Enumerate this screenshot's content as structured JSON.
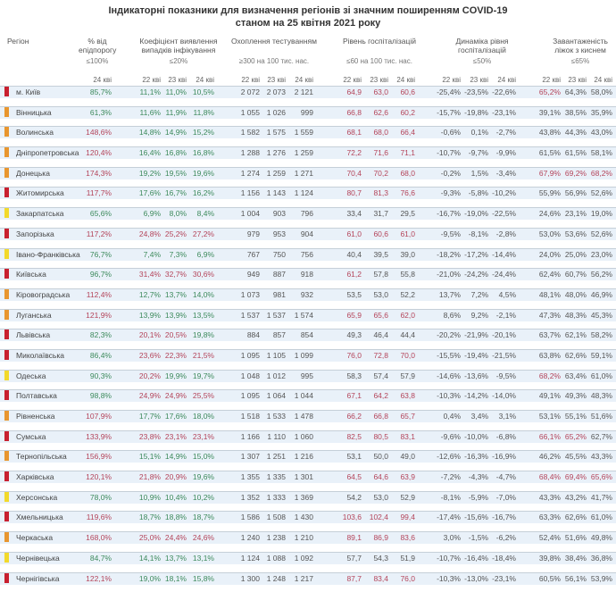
{
  "title": {
    "line1": "Індикаторні показники для визначення регіонів зі значним поширенням COVID-19",
    "line2": "станом на 25 квітня 2021 року"
  },
  "columns": {
    "region": "Регіон",
    "epi": {
      "label": "% від епідпорогу",
      "threshold": "≤100%",
      "dates": [
        "24 кві"
      ]
    },
    "coef": {
      "label": "Коефіцієнт виявлення випадків інфікування",
      "threshold": "≤20%",
      "dates": [
        "22 кві",
        "23 кві",
        "24 кві"
      ]
    },
    "test": {
      "label": "Охоплення тестуванням",
      "threshold": "≥300 на 100 тис. нас.",
      "dates": [
        "22 кві",
        "23 кві",
        "24 кві"
      ]
    },
    "hosp": {
      "label": "Рівень госпіталізацій",
      "threshold": "≤60 на 100 тис. нас.",
      "dates": [
        "22 кві",
        "23 кві",
        "24 кві"
      ]
    },
    "dyn": {
      "label": "Динаміка рівня госпіталізацій",
      "threshold": "≤50%",
      "dates": [
        "22 кві",
        "23 кві",
        "24 кві"
      ]
    },
    "oxy": {
      "label": "Завантаженість ліжок з киснем",
      "threshold": "≤65%",
      "dates": [
        "22 кві",
        "23 кві",
        "24 кві"
      ]
    }
  },
  "colors": {
    "red": "#c8202f",
    "orange": "#e8962f",
    "yellow": "#f2d92b",
    "over": "#b4445a",
    "ok": "#3d8a5c"
  },
  "regions": [
    {
      "name": "м. Київ",
      "level": "red",
      "epi": "85,7%",
      "coef": [
        "11,1%",
        "11,0%",
        "10,5%"
      ],
      "test": [
        "2 072",
        "2 073",
        "2 121"
      ],
      "hosp": [
        "64,9",
        "63,0",
        "60,6"
      ],
      "dyn": [
        "-25,4%",
        "-23,5%",
        "-22,6%"
      ],
      "oxy": [
        "65,2%",
        "64,3%",
        "58,0%"
      ]
    },
    {
      "name": "Вінницька",
      "level": "orange",
      "epi": "61,3%",
      "coef": [
        "11,6%",
        "11,9%",
        "11,8%"
      ],
      "test": [
        "1 055",
        "1 026",
        "999"
      ],
      "hosp": [
        "66,8",
        "62,6",
        "60,2"
      ],
      "dyn": [
        "-15,7%",
        "-19,8%",
        "-23,1%"
      ],
      "oxy": [
        "39,1%",
        "38,5%",
        "35,9%"
      ]
    },
    {
      "name": "Волинська",
      "level": "orange",
      "epi": "148,6%",
      "coef": [
        "14,8%",
        "14,9%",
        "15,2%"
      ],
      "test": [
        "1 582",
        "1 575",
        "1 559"
      ],
      "hosp": [
        "68,1",
        "68,0",
        "66,4"
      ],
      "dyn": [
        "-0,6%",
        "0,1%",
        "-2,7%"
      ],
      "oxy": [
        "43,8%",
        "44,3%",
        "43,0%"
      ]
    },
    {
      "name": "Дніпропетровська",
      "level": "orange",
      "epi": "120,4%",
      "coef": [
        "16,4%",
        "16,8%",
        "16,8%"
      ],
      "test": [
        "1 288",
        "1 276",
        "1 259"
      ],
      "hosp": [
        "72,2",
        "71,6",
        "71,1"
      ],
      "dyn": [
        "-10,7%",
        "-9,7%",
        "-9,9%"
      ],
      "oxy": [
        "61,5%",
        "61,5%",
        "58,1%"
      ]
    },
    {
      "name": "Донецька",
      "level": "orange",
      "epi": "174,3%",
      "coef": [
        "19,2%",
        "19,5%",
        "19,6%"
      ],
      "test": [
        "1 274",
        "1 259",
        "1 271"
      ],
      "hosp": [
        "70,4",
        "70,2",
        "68,0"
      ],
      "dyn": [
        "-0,2%",
        "1,5%",
        "-3,4%"
      ],
      "oxy": [
        "67,9%",
        "69,2%",
        "68,2%"
      ]
    },
    {
      "name": "Житомирська",
      "level": "red",
      "epi": "117,7%",
      "coef": [
        "17,6%",
        "16,7%",
        "16,2%"
      ],
      "test": [
        "1 156",
        "1 143",
        "1 124"
      ],
      "hosp": [
        "80,7",
        "81,3",
        "76,6"
      ],
      "dyn": [
        "-9,3%",
        "-5,8%",
        "-10,2%"
      ],
      "oxy": [
        "55,9%",
        "56,9%",
        "52,6%"
      ]
    },
    {
      "name": "Закарпатська",
      "level": "yellow",
      "epi": "65,6%",
      "coef": [
        "6,9%",
        "8,0%",
        "8,4%"
      ],
      "test": [
        "1 004",
        "903",
        "796"
      ],
      "hosp": [
        "33,4",
        "31,7",
        "29,5"
      ],
      "dyn": [
        "-16,7%",
        "-19,0%",
        "-22,5%"
      ],
      "oxy": [
        "24,6%",
        "23,1%",
        "19,0%"
      ]
    },
    {
      "name": "Запорізька",
      "level": "red",
      "epi": "117,2%",
      "coef": [
        "24,8%",
        "25,2%",
        "27,2%"
      ],
      "test": [
        "979",
        "953",
        "904"
      ],
      "hosp": [
        "61,0",
        "60,6",
        "61,0"
      ],
      "dyn": [
        "-9,5%",
        "-8,1%",
        "-2,8%"
      ],
      "oxy": [
        "53,0%",
        "53,6%",
        "52,6%"
      ]
    },
    {
      "name": "Івано-Франківська",
      "level": "yellow",
      "epi": "76,7%",
      "coef": [
        "7,4%",
        "7,3%",
        "6,9%"
      ],
      "test": [
        "767",
        "750",
        "756"
      ],
      "hosp": [
        "40,4",
        "39,5",
        "39,0"
      ],
      "dyn": [
        "-18,2%",
        "-17,2%",
        "-14,4%"
      ],
      "oxy": [
        "24,0%",
        "25,0%",
        "23,0%"
      ]
    },
    {
      "name": "Київська",
      "level": "red",
      "epi": "96,7%",
      "coef": [
        "31,4%",
        "32,7%",
        "30,6%"
      ],
      "test": [
        "949",
        "887",
        "918"
      ],
      "hosp": [
        "61,2",
        "57,8",
        "55,8"
      ],
      "dyn": [
        "-21,0%",
        "-24,2%",
        "-24,4%"
      ],
      "oxy": [
        "62,4%",
        "60,7%",
        "56,2%"
      ]
    },
    {
      "name": "Кіровоградська",
      "level": "orange",
      "epi": "112,4%",
      "coef": [
        "12,7%",
        "13,7%",
        "14,0%"
      ],
      "test": [
        "1 073",
        "981",
        "932"
      ],
      "hosp": [
        "53,5",
        "53,0",
        "52,2"
      ],
      "dyn": [
        "13,7%",
        "7,2%",
        "4,5%"
      ],
      "oxy": [
        "48,1%",
        "48,0%",
        "46,9%"
      ]
    },
    {
      "name": "Луганська",
      "level": "orange",
      "epi": "121,9%",
      "coef": [
        "13,9%",
        "13,9%",
        "13,5%"
      ],
      "test": [
        "1 537",
        "1 537",
        "1 574"
      ],
      "hosp": [
        "65,9",
        "65,6",
        "62,0"
      ],
      "dyn": [
        "8,6%",
        "9,2%",
        "-2,1%"
      ],
      "oxy": [
        "47,3%",
        "48,3%",
        "45,3%"
      ]
    },
    {
      "name": "Львівська",
      "level": "red",
      "epi": "82,3%",
      "coef": [
        "20,1%",
        "20,5%",
        "19,8%"
      ],
      "test": [
        "884",
        "857",
        "854"
      ],
      "hosp": [
        "49,3",
        "46,4",
        "44,4"
      ],
      "dyn": [
        "-20,2%",
        "-21,9%",
        "-20,1%"
      ],
      "oxy": [
        "63,7%",
        "62,1%",
        "58,2%"
      ]
    },
    {
      "name": "Миколаївська",
      "level": "red",
      "epi": "86,4%",
      "coef": [
        "23,6%",
        "22,3%",
        "21,5%"
      ],
      "test": [
        "1 095",
        "1 105",
        "1 099"
      ],
      "hosp": [
        "76,0",
        "72,8",
        "70,0"
      ],
      "dyn": [
        "-15,5%",
        "-19,4%",
        "-21,5%"
      ],
      "oxy": [
        "63,8%",
        "62,6%",
        "59,1%"
      ]
    },
    {
      "name": "Одеська",
      "level": "yellow",
      "epi": "90,3%",
      "coef": [
        "20,2%",
        "19,9%",
        "19,7%"
      ],
      "test": [
        "1 048",
        "1 012",
        "995"
      ],
      "hosp": [
        "58,3",
        "57,4",
        "57,9"
      ],
      "dyn": [
        "-14,6%",
        "-13,6%",
        "-9,5%"
      ],
      "oxy": [
        "68,2%",
        "63,4%",
        "61,0%"
      ]
    },
    {
      "name": "Полтавська",
      "level": "red",
      "epi": "98,8%",
      "coef": [
        "24,9%",
        "24,9%",
        "25,5%"
      ],
      "test": [
        "1 095",
        "1 064",
        "1 044"
      ],
      "hosp": [
        "67,1",
        "64,2",
        "63,8"
      ],
      "dyn": [
        "-10,3%",
        "-14,2%",
        "-14,0%"
      ],
      "oxy": [
        "49,1%",
        "49,3%",
        "48,3%"
      ]
    },
    {
      "name": "Рівненська",
      "level": "orange",
      "epi": "107,9%",
      "coef": [
        "17,7%",
        "17,6%",
        "18,0%"
      ],
      "test": [
        "1 518",
        "1 533",
        "1 478"
      ],
      "hosp": [
        "66,2",
        "66,8",
        "65,7"
      ],
      "dyn": [
        "0,4%",
        "3,4%",
        "3,1%"
      ],
      "oxy": [
        "53,1%",
        "55,1%",
        "51,6%"
      ]
    },
    {
      "name": "Сумська",
      "level": "red",
      "epi": "133,9%",
      "coef": [
        "23,8%",
        "23,1%",
        "23,1%"
      ],
      "test": [
        "1 166",
        "1 110",
        "1 060"
      ],
      "hosp": [
        "82,5",
        "80,5",
        "83,1"
      ],
      "dyn": [
        "-9,6%",
        "-10,0%",
        "-6,8%"
      ],
      "oxy": [
        "66,1%",
        "65,2%",
        "62,7%"
      ]
    },
    {
      "name": "Тернопільська",
      "level": "orange",
      "epi": "156,9%",
      "coef": [
        "15,1%",
        "14,9%",
        "15,0%"
      ],
      "test": [
        "1 307",
        "1 251",
        "1 216"
      ],
      "hosp": [
        "53,1",
        "50,0",
        "49,0"
      ],
      "dyn": [
        "-12,6%",
        "-16,3%",
        "-16,9%"
      ],
      "oxy": [
        "46,2%",
        "45,5%",
        "43,3%"
      ]
    },
    {
      "name": "Харківська",
      "level": "red",
      "epi": "120,1%",
      "coef": [
        "21,8%",
        "20,9%",
        "19,6%"
      ],
      "test": [
        "1 355",
        "1 335",
        "1 301"
      ],
      "hosp": [
        "64,5",
        "64,6",
        "63,9"
      ],
      "dyn": [
        "-7,2%",
        "-4,3%",
        "-4,7%"
      ],
      "oxy": [
        "68,4%",
        "69,4%",
        "65,6%"
      ]
    },
    {
      "name": "Херсонська",
      "level": "yellow",
      "epi": "78,0%",
      "coef": [
        "10,9%",
        "10,4%",
        "10,2%"
      ],
      "test": [
        "1 352",
        "1 333",
        "1 369"
      ],
      "hosp": [
        "54,2",
        "53,0",
        "52,9"
      ],
      "dyn": [
        "-8,1%",
        "-5,9%",
        "-7,0%"
      ],
      "oxy": [
        "43,3%",
        "43,2%",
        "41,7%"
      ]
    },
    {
      "name": "Хмельницька",
      "level": "red",
      "epi": "119,6%",
      "coef": [
        "18,7%",
        "18,8%",
        "18,7%"
      ],
      "test": [
        "1 586",
        "1 508",
        "1 430"
      ],
      "hosp": [
        "103,6",
        "102,4",
        "99,4"
      ],
      "dyn": [
        "-17,4%",
        "-15,6%",
        "-16,7%"
      ],
      "oxy": [
        "63,3%",
        "62,6%",
        "61,0%"
      ]
    },
    {
      "name": "Черкаська",
      "level": "orange",
      "epi": "168,0%",
      "coef": [
        "25,0%",
        "24,4%",
        "24,6%"
      ],
      "test": [
        "1 240",
        "1 238",
        "1 210"
      ],
      "hosp": [
        "89,1",
        "86,9",
        "83,6"
      ],
      "dyn": [
        "3,0%",
        "-1,5%",
        "-6,2%"
      ],
      "oxy": [
        "52,4%",
        "51,6%",
        "49,8%"
      ]
    },
    {
      "name": "Чернівецька",
      "level": "yellow",
      "epi": "84,7%",
      "coef": [
        "14,1%",
        "13,7%",
        "13,1%"
      ],
      "test": [
        "1 124",
        "1 088",
        "1 092"
      ],
      "hosp": [
        "57,7",
        "54,3",
        "51,9"
      ],
      "dyn": [
        "-10,7%",
        "-16,4%",
        "-18,4%"
      ],
      "oxy": [
        "39,8%",
        "38,4%",
        "36,8%"
      ]
    },
    {
      "name": "Чернігівська",
      "level": "red",
      "epi": "122,1%",
      "coef": [
        "19,0%",
        "18,1%",
        "15,8%"
      ],
      "test": [
        "1 300",
        "1 248",
        "1 217"
      ],
      "hosp": [
        "87,7",
        "83,4",
        "76,0"
      ],
      "dyn": [
        "-10,3%",
        "-13,0%",
        "-23,1%"
      ],
      "oxy": [
        "60,5%",
        "56,1%",
        "53,9%"
      ]
    }
  ]
}
